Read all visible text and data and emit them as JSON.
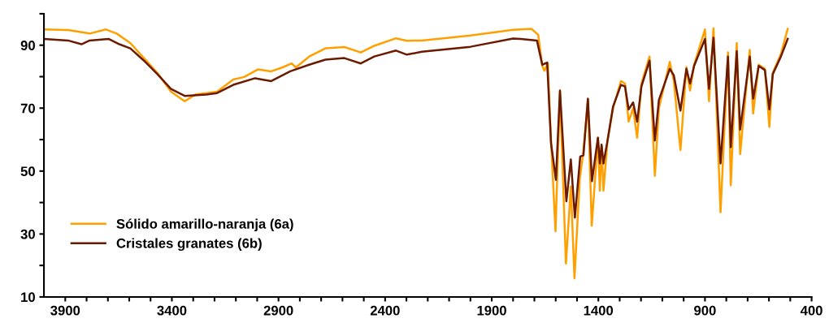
{
  "chart_data": {
    "type": "line",
    "xlim": [
      4000,
      400
    ],
    "ylim": [
      10,
      100
    ],
    "xticks": [
      {
        "value": 3900,
        "label": "3900"
      },
      {
        "value": 3800,
        "label": null
      },
      {
        "value": 3700,
        "label": null
      },
      {
        "value": 3600,
        "label": null
      },
      {
        "value": 3500,
        "label": null
      },
      {
        "value": 3400,
        "label": "3400"
      },
      {
        "value": 3300,
        "label": null
      },
      {
        "value": 3200,
        "label": null
      },
      {
        "value": 3100,
        "label": null
      },
      {
        "value": 3000,
        "label": null
      },
      {
        "value": 2900,
        "label": "2900"
      },
      {
        "value": 2800,
        "label": null
      },
      {
        "value": 2700,
        "label": null
      },
      {
        "value": 2600,
        "label": null
      },
      {
        "value": 2500,
        "label": null
      },
      {
        "value": 2400,
        "label": "2400"
      },
      {
        "value": 2300,
        "label": null
      },
      {
        "value": 2200,
        "label": null
      },
      {
        "value": 2100,
        "label": null
      },
      {
        "value": 2000,
        "label": null
      },
      {
        "value": 1900,
        "label": "1900"
      },
      {
        "value": 1800,
        "label": null
      },
      {
        "value": 1700,
        "label": null
      },
      {
        "value": 1600,
        "label": null
      },
      {
        "value": 1500,
        "label": null
      },
      {
        "value": 1400,
        "label": "1400"
      },
      {
        "value": 1300,
        "label": null
      },
      {
        "value": 1200,
        "label": null
      },
      {
        "value": 1100,
        "label": null
      },
      {
        "value": 1000,
        "label": null
      },
      {
        "value": 900,
        "label": "900"
      },
      {
        "value": 800,
        "label": null
      },
      {
        "value": 700,
        "label": null
      },
      {
        "value": 600,
        "label": null
      },
      {
        "value": 500,
        "label": null
      },
      {
        "value": 400,
        "label": "400"
      }
    ],
    "yticks": [
      10,
      {
        "value": 20,
        "label": null
      },
      30,
      {
        "value": 40,
        "label": null
      },
      50,
      {
        "value": 60,
        "label": null
      },
      70,
      {
        "value": 80,
        "label": null
      },
      90,
      {
        "value": 100,
        "label": null
      }
    ],
    "grid": false,
    "legend": "bottom left",
    "marker": "none",
    "line_style": "solid",
    "series": [
      {
        "name": "Sólido amarillo-naranja (6a)",
        "color": "#ffa000",
        "x": [
          4000,
          3887,
          3786,
          3709,
          3659,
          3595,
          3531,
          3468,
          3404,
          3340,
          3290,
          3188,
          3112,
          3061,
          2997,
          2934,
          2883,
          2838,
          2819,
          2756,
          2680,
          2591,
          2514,
          2451,
          2349,
          2298,
          2228,
          2000,
          1800,
          1764,
          1714,
          1682,
          1663,
          1653,
          1637,
          1622,
          1601,
          1580,
          1552,
          1529,
          1512,
          1487,
          1472,
          1449,
          1431,
          1402,
          1393,
          1385,
          1376,
          1357,
          1331,
          1294,
          1275,
          1258,
          1237,
          1218,
          1198,
          1160,
          1135,
          1116,
          1065,
          1046,
          1015,
          987,
          970,
          951,
          900,
          881,
          860,
          827,
          792,
          779,
          751,
          735,
          690,
          674,
          648,
          619,
          598,
          582,
          544,
          512
        ],
        "values": [
          95.0,
          94.8,
          93.7,
          95.0,
          93.7,
          90.7,
          85.9,
          81.2,
          75.2,
          72.2,
          74.3,
          75.2,
          79.1,
          79.9,
          82.3,
          81.7,
          82.9,
          84.2,
          82.9,
          86.4,
          89.0,
          89.4,
          87.7,
          89.8,
          92.2,
          91.4,
          91.5,
          93.1,
          94.9,
          95.0,
          95.2,
          93.3,
          83.4,
          81.9,
          84.2,
          59.7,
          30.9,
          75.2,
          20.6,
          45.1,
          15.9,
          47.7,
          55.0,
          72.6,
          32.6,
          60.6,
          43.8,
          58.0,
          43.8,
          59.7,
          70.0,
          78.6,
          77.8,
          65.7,
          70.0,
          60.6,
          77.8,
          86.4,
          48.5,
          70.0,
          84.7,
          78.6,
          56.7,
          83.0,
          75.6,
          83.8,
          95.0,
          72.2,
          95.4,
          36.9,
          87.7,
          45.5,
          90.7,
          55.4,
          88.5,
          68.3,
          83.8,
          82.5,
          64.0,
          81.2,
          87.2,
          95.2
        ]
      },
      {
        "name": "Cristales granates (6b)",
        "color": "#6b1a00",
        "x": [
          4000,
          3887,
          3824,
          3786,
          3697,
          3646,
          3595,
          3531,
          3468,
          3404,
          3340,
          3239,
          3188,
          3112,
          3010,
          2934,
          2845,
          2756,
          2680,
          2591,
          2514,
          2451,
          2349,
          2298,
          2228,
          2000,
          1800,
          1764,
          1688,
          1663,
          1640,
          1622,
          1599,
          1580,
          1550,
          1529,
          1510,
          1485,
          1470,
          1449,
          1430,
          1402,
          1393,
          1385,
          1376,
          1357,
          1331,
          1294,
          1275,
          1258,
          1237,
          1218,
          1198,
          1160,
          1135,
          1116,
          1065,
          1046,
          1015,
          987,
          970,
          951,
          900,
          881,
          860,
          827,
          792,
          779,
          751,
          735,
          690,
          674,
          648,
          619,
          598,
          582,
          544,
          512
        ],
        "values": [
          92.0,
          91.5,
          90.3,
          91.5,
          92.0,
          90.3,
          89.0,
          85.1,
          80.8,
          76.1,
          73.9,
          74.3,
          74.8,
          77.4,
          79.5,
          78.6,
          81.7,
          83.8,
          85.4,
          85.9,
          84.2,
          86.4,
          88.3,
          87.0,
          87.9,
          89.5,
          92.1,
          92.0,
          91.5,
          83.8,
          84.5,
          58.9,
          47.2,
          75.6,
          40.4,
          53.7,
          35.2,
          54.6,
          55.0,
          73.0,
          46.8,
          60.6,
          52.4,
          58.4,
          52.4,
          59.7,
          70.5,
          77.4,
          76.9,
          69.6,
          71.8,
          65.7,
          76.9,
          85.1,
          59.7,
          72.6,
          82.5,
          80.4,
          69.2,
          82.5,
          77.8,
          83.4,
          92.0,
          76.1,
          92.4,
          52.4,
          86.4,
          57.6,
          88.1,
          63.2,
          86.4,
          73.0,
          83.4,
          82.1,
          69.6,
          80.8,
          86.4,
          92.0
        ]
      }
    ]
  }
}
